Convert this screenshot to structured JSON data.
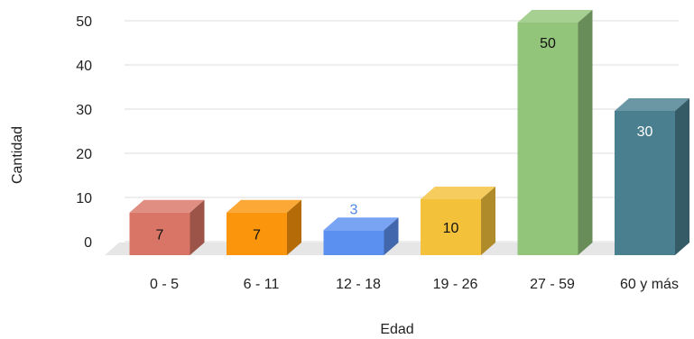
{
  "chart_data": {
    "type": "bar",
    "style": "3d",
    "categories": [
      "0 - 5",
      "6 - 11",
      "12 - 18",
      "19 - 26",
      "27 - 59",
      "60  y más"
    ],
    "values": [
      7,
      7,
      3,
      10,
      50,
      30
    ],
    "colors": [
      "#d97566",
      "#fb950b",
      "#5b8ff0",
      "#f3c13a",
      "#92c47a",
      "#4a7f8f"
    ],
    "label_colors": [
      "#111111",
      "#111111",
      "#4f86e6",
      "#111111",
      "#111111",
      "#ffffff"
    ],
    "xlabel": "Edad",
    "ylabel": "Cantidad",
    "yticks": [
      0,
      10,
      20,
      30,
      40,
      50
    ],
    "ylim": [
      0,
      50
    ],
    "grid": true,
    "legend": "none"
  }
}
